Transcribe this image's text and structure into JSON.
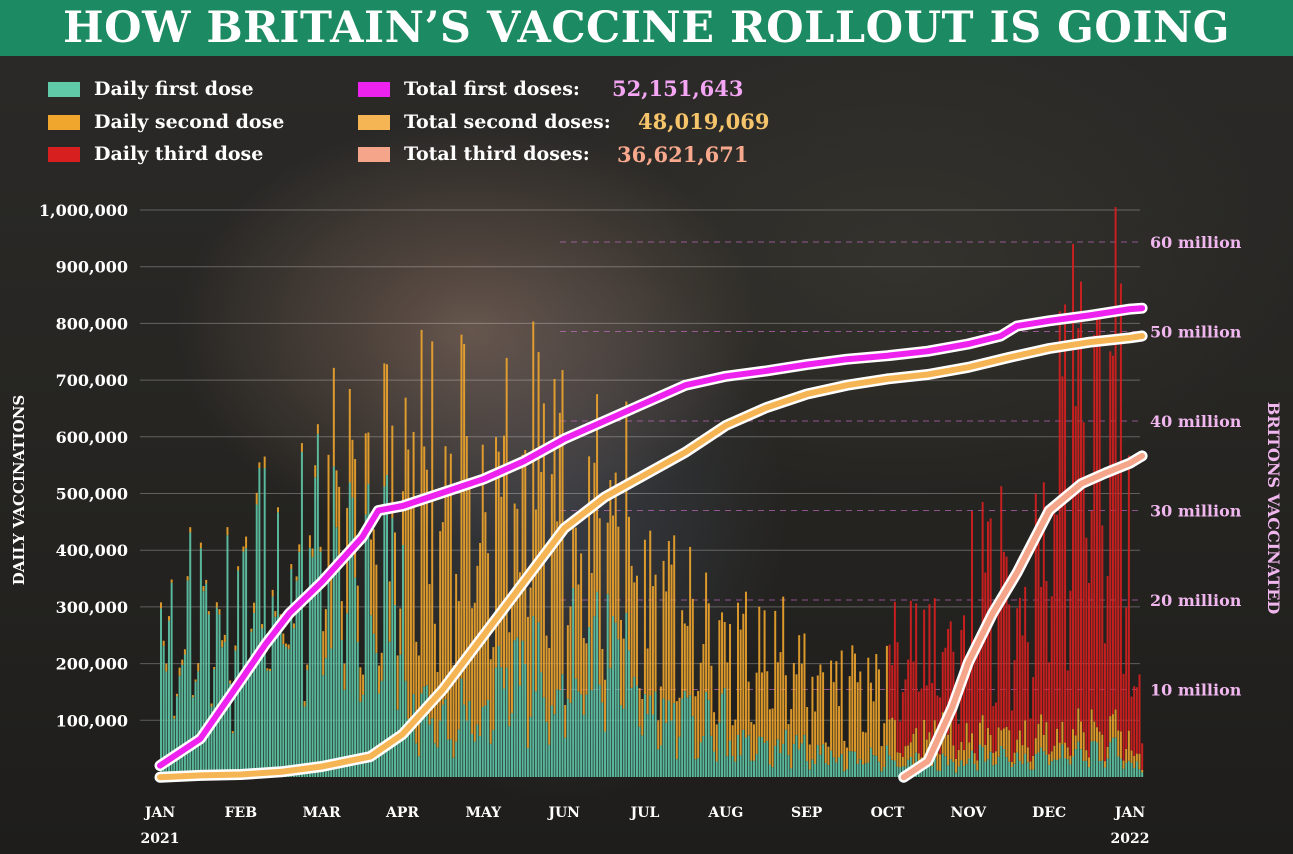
{
  "title": "HOW BRITAIN’S VACCINE ROLLOUT IS GOING",
  "legend": {
    "daily": [
      {
        "label": "Daily first dose",
        "color": "#5fc9a8"
      },
      {
        "label": "Daily second dose",
        "color": "#f0a52c"
      },
      {
        "label": "Daily third dose",
        "color": "#d81f1f"
      }
    ],
    "totals": [
      {
        "label": "Total first doses:",
        "value": "52,151,643",
        "color": "#ee22ee",
        "value_color": "#f4a6f4"
      },
      {
        "label": "Total second doses:",
        "value": "48,019,069",
        "color": "#f6b554",
        "value_color": "#f6c46a"
      },
      {
        "label": "Total third doses:",
        "value": "36,621,671",
        "color": "#f4a58a",
        "value_color": "#f8a88c"
      }
    ]
  },
  "chart_data": {
    "type": "bar",
    "ylabel": "DAILY VACCINATIONS",
    "y2label": "BRITONS VACCINATED",
    "ylim": [
      0,
      1000000
    ],
    "y2lim": [
      0,
      60000000
    ],
    "yticks": [
      "100,000",
      "200,000",
      "300,000",
      "400,000",
      "500,000",
      "600,000",
      "700,000",
      "800,000",
      "900,000",
      "1,000,000"
    ],
    "y2ticks": [
      "10 million",
      "20 million",
      "30 million",
      "40 million",
      "50 million",
      "60 million"
    ],
    "xticks": [
      "JAN",
      "FEB",
      "MAR",
      "APR",
      "MAY",
      "JUN",
      "JUL",
      "AUG",
      "SEP",
      "OCT",
      "NOV",
      "DEC",
      "JAN"
    ],
    "xyears": [
      "2021",
      "2022"
    ],
    "grid": true,
    "right_axis_grid": "dashed",
    "monthly_daily_estimates": [
      {
        "month": "JAN",
        "first": 300000,
        "second": 10000,
        "third": 0
      },
      {
        "month": "FEB",
        "first": 420000,
        "second": 15000,
        "third": 0
      },
      {
        "month": "MAR",
        "first": 380000,
        "second": 150000,
        "third": 0
      },
      {
        "month": "APR",
        "first": 120000,
        "second": 450000,
        "third": 0
      },
      {
        "month": "MAY",
        "first": 200000,
        "second": 400000,
        "third": 0
      },
      {
        "month": "JUN",
        "first": 230000,
        "second": 250000,
        "third": 0
      },
      {
        "month": "JUL",
        "first": 110000,
        "second": 200000,
        "third": 0
      },
      {
        "month": "AUG",
        "first": 60000,
        "second": 180000,
        "third": 0
      },
      {
        "month": "SEP",
        "first": 40000,
        "second": 130000,
        "third": 0
      },
      {
        "month": "OCT",
        "first": 30000,
        "second": 50000,
        "third": 180000
      },
      {
        "month": "NOV",
        "first": 40000,
        "second": 40000,
        "third": 300000
      },
      {
        "month": "DEC",
        "first": 50000,
        "second": 40000,
        "third": 600000
      },
      {
        "month": "JAN",
        "first": 20000,
        "second": 20000,
        "third": 150000
      }
    ],
    "series": [
      {
        "name": "Total first doses",
        "color": "#ee22ee",
        "points": [
          [
            0,
            1.5
          ],
          [
            0.5,
            4.5
          ],
          [
            1,
            11
          ],
          [
            1.3,
            15
          ],
          [
            1.6,
            18.5
          ],
          [
            2,
            22
          ],
          [
            2.5,
            27
          ],
          [
            2.7,
            30
          ],
          [
            3,
            30.5
          ],
          [
            3.5,
            32
          ],
          [
            4,
            33.5
          ],
          [
            4.5,
            35.5
          ],
          [
            5,
            38
          ],
          [
            5.5,
            40
          ],
          [
            6,
            42
          ],
          [
            6.5,
            44
          ],
          [
            7,
            45
          ],
          [
            7.5,
            45.6
          ],
          [
            8,
            46.3
          ],
          [
            8.5,
            46.9
          ],
          [
            9,
            47.3
          ],
          [
            9.5,
            47.8
          ],
          [
            10,
            48.6
          ],
          [
            10.4,
            49.5
          ],
          [
            10.6,
            50.6
          ],
          [
            11,
            51.2
          ],
          [
            11.5,
            51.8
          ],
          [
            12,
            52.5
          ],
          [
            12.15,
            52.6
          ]
        ]
      },
      {
        "name": "Total second doses",
        "color": "#f6b554",
        "points": [
          [
            0,
            0.2
          ],
          [
            0.5,
            0.4
          ],
          [
            1,
            0.5
          ],
          [
            1.5,
            0.8
          ],
          [
            2,
            1.4
          ],
          [
            2.6,
            2.5
          ],
          [
            3,
            5
          ],
          [
            3.5,
            10
          ],
          [
            4,
            16
          ],
          [
            4.5,
            22
          ],
          [
            5,
            28
          ],
          [
            5.5,
            31.5
          ],
          [
            6,
            34
          ],
          [
            6.5,
            36.5
          ],
          [
            7,
            39.5
          ],
          [
            7.5,
            41.5
          ],
          [
            8,
            43
          ],
          [
            8.5,
            44
          ],
          [
            9,
            44.7
          ],
          [
            9.5,
            45.2
          ],
          [
            10,
            46
          ],
          [
            10.5,
            47.1
          ],
          [
            11,
            48.1
          ],
          [
            11.5,
            48.8
          ],
          [
            12,
            49.3
          ],
          [
            12.15,
            49.5
          ]
        ]
      },
      {
        "name": "Total third doses",
        "color": "#f4a58a",
        "points": [
          [
            9.2,
            0.2
          ],
          [
            9.5,
            2
          ],
          [
            9.8,
            8
          ],
          [
            10,
            13
          ],
          [
            10.3,
            18.5
          ],
          [
            10.6,
            23
          ],
          [
            11,
            30
          ],
          [
            11.4,
            33
          ],
          [
            11.7,
            34.2
          ],
          [
            12,
            35.3
          ],
          [
            12.15,
            36.1
          ]
        ]
      }
    ]
  }
}
